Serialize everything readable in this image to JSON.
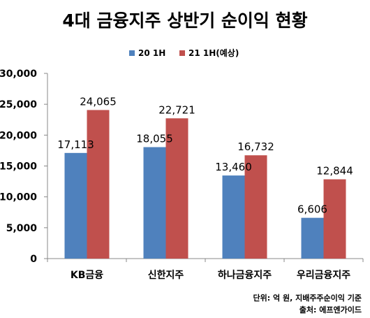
{
  "chart_data": {
    "type": "bar",
    "title": "4대 금융지주 상반기 순이익 현황",
    "categories": [
      "KB금융",
      "신한지주",
      "하나금융지주",
      "우리금융지주"
    ],
    "series": [
      {
        "name": "20 1H",
        "color": "#4f81bd",
        "values": [
          17113,
          18055,
          13460,
          6606
        ],
        "labels": [
          "17,113",
          "18,055",
          "13,460",
          "6,606"
        ]
      },
      {
        "name": "21 1H(예상)",
        "color": "#c0504d",
        "values": [
          24065,
          22721,
          16732,
          12844
        ],
        "labels": [
          "24,065",
          "22,721",
          "16,732",
          "12,844"
        ]
      }
    ],
    "ylim": [
      0,
      30000
    ],
    "yticks": [
      0,
      5000,
      10000,
      15000,
      20000,
      25000,
      30000
    ],
    "ytick_labels": [
      "0",
      "5,000",
      "10,000",
      "15,000",
      "20,000",
      "25,000",
      "30,000"
    ],
    "xlabel": "",
    "ylabel": "",
    "grid": false,
    "legend_position": "top-center",
    "notes": [
      "단위: 억 원, 지배주주순이익 기준",
      "출처: 에프엔가이드"
    ]
  }
}
